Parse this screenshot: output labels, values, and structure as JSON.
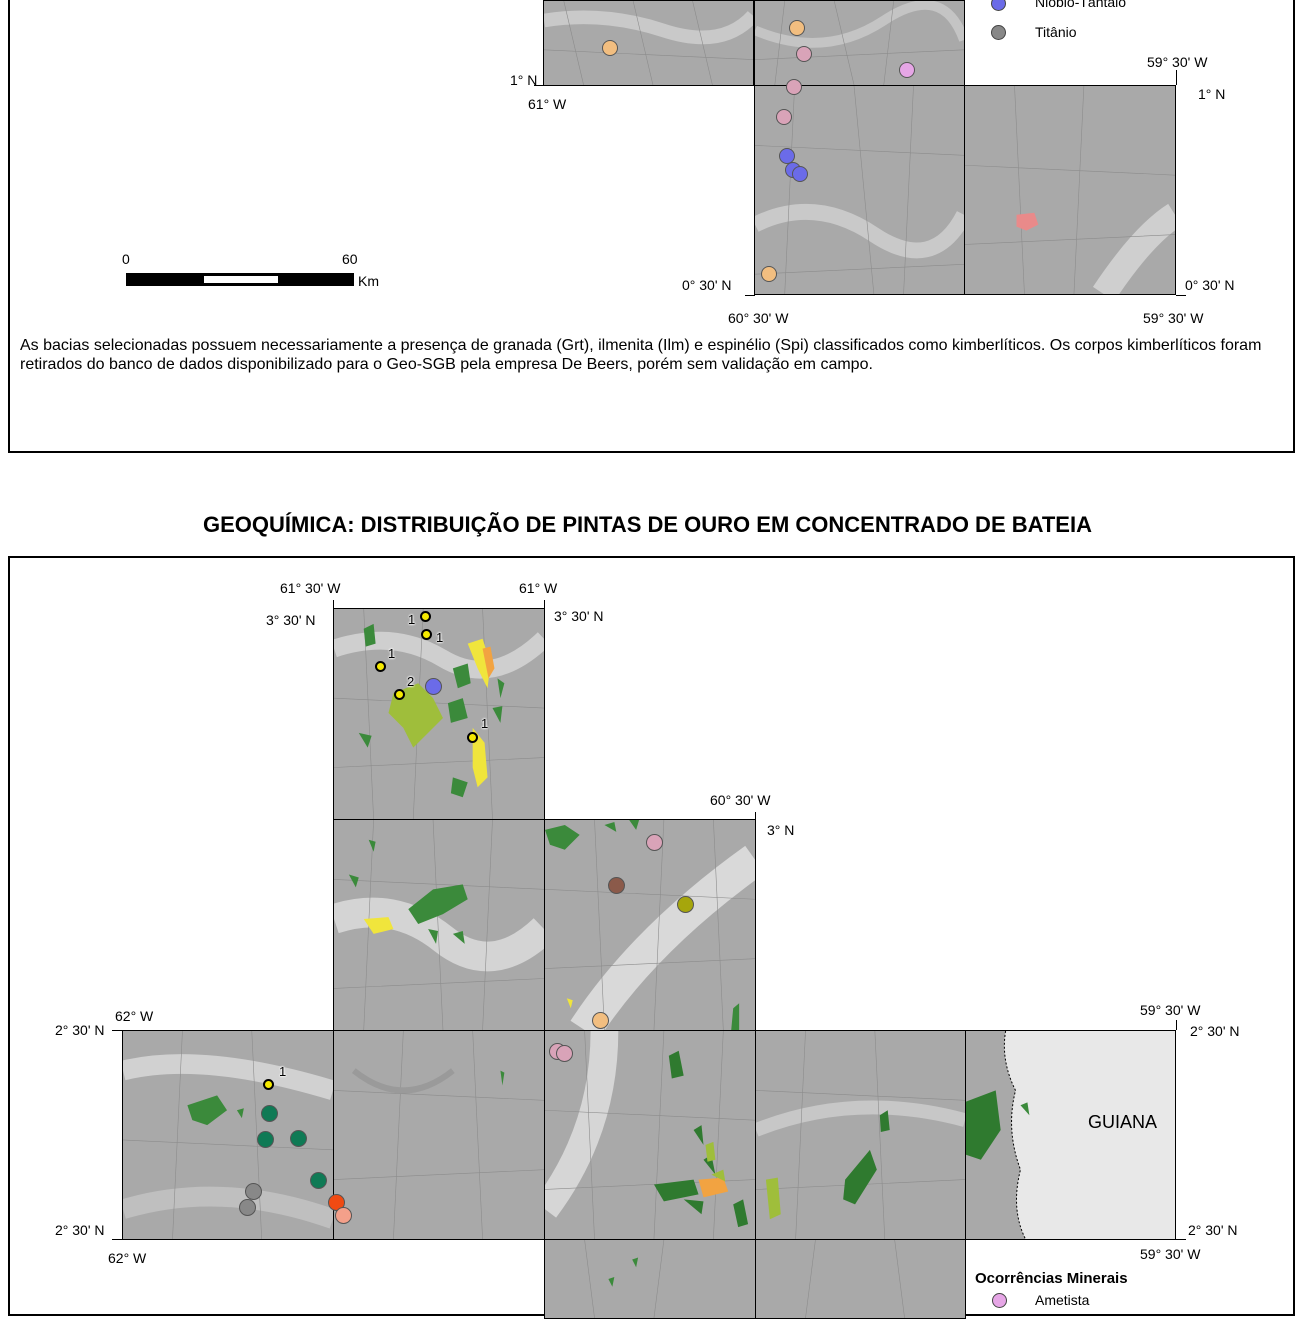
{
  "top_panel": {
    "legend": {
      "items": [
        {
          "label": "Nióbio-Tântalo",
          "color": "#6b6be8"
        },
        {
          "label": "Titânio",
          "color": "#888888"
        }
      ]
    },
    "coords": {
      "lat_1n_left": "1° N",
      "lon_61w": "61° W",
      "lon_5930_top": "59° 30' W",
      "lat_1n_right": "1° N",
      "lat_030_left": "0° 30' N",
      "lat_030_right": "0° 30' N",
      "lon_6030_bottom": "60° 30' W",
      "lon_5930_bottom": "59° 30' W"
    },
    "scale": {
      "start": "0",
      "end": "60",
      "unit": "Km"
    },
    "caption": "As bacias selecionadas possuem necessariamente a presença de granada (Grt), ilmenita (Ilm) e espinélio (Spi) classificados como kimberlíticos. Os corpos kimberlíticos foram retirados do banco de dados disponibilizado para o Geo-SGB pela empresa De Beers, porém sem validação em campo."
  },
  "section2": {
    "title": "GEOQUÍMICA: DISTRIBUIÇÃO DE PINTAS DE OURO EM CONCENTRADO DE BATEIA",
    "coords": {
      "lon_6130": "61° 30' W",
      "lon_61": "61° W",
      "lat_330_left": "3° 30' N",
      "lat_330_right": "3° 30' N",
      "lon_6030": "60° 30' W",
      "lat_3n": "3° N",
      "lon_62_top": "62° W",
      "lat_230_top_left": "2° 30' N",
      "lon_5930_top": "59° 30' W",
      "lat_230_top_right": "2° 30' N",
      "lat_230_bottom_left": "2° 30' N",
      "lon_62_bottom": "62° W",
      "lat_230_bottom_right": "2° 30' N",
      "lon_5930_bottom": "59° 30' W"
    },
    "country_label": "GUIANA",
    "gold_counts": [
      "1",
      "1",
      "1",
      "2",
      "1",
      "1"
    ],
    "legend": {
      "title": "Ocorrências Minerais",
      "items": [
        {
          "label": "Ametista",
          "color": "#e6a6e6"
        }
      ]
    }
  }
}
